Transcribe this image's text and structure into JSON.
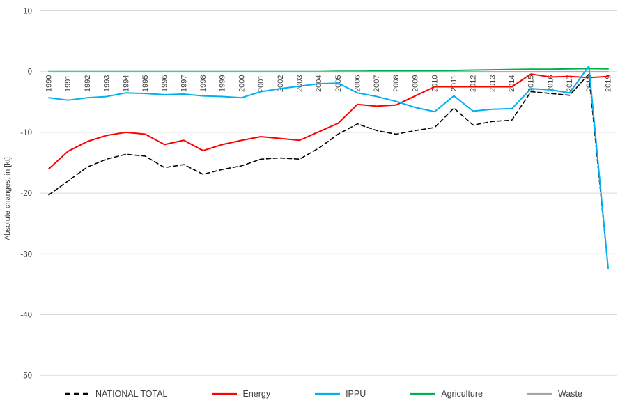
{
  "chart_data": {
    "type": "line",
    "title": "",
    "xlabel": "",
    "ylabel": "Absolute changes, in [kt]",
    "ylim": [
      -50,
      10
    ],
    "yticks": [
      10,
      0,
      -10,
      -20,
      -30,
      -40,
      -50
    ],
    "grid": true,
    "legend_position": "bottom",
    "categories": [
      "1990",
      "1991",
      "1992",
      "1993",
      "1994",
      "1995",
      "1996",
      "1997",
      "1998",
      "1999",
      "2000",
      "2001",
      "2002",
      "2003",
      "2004",
      "2005",
      "2006",
      "2007",
      "2008",
      "2009",
      "2010",
      "2011",
      "2012",
      "2013",
      "2014",
      "2015",
      "2016",
      "2017",
      "2018",
      "2019"
    ],
    "series": [
      {
        "name": "NATIONAL TOTAL",
        "color": "#000000",
        "dashed": true,
        "values": [
          -20.3,
          -18.0,
          -15.7,
          -14.4,
          -13.6,
          -13.9,
          -15.8,
          -15.3,
          -16.9,
          -16.1,
          -15.5,
          -14.4,
          -14.2,
          -14.4,
          -12.6,
          -10.3,
          -8.6,
          -9.7,
          -10.3,
          -9.7,
          -9.2,
          -6.0,
          -8.8,
          -8.2,
          -8.0,
          -3.3,
          -3.6,
          -3.9,
          -0.4,
          -32.5
        ]
      },
      {
        "name": "Energy",
        "color": "#FF0000",
        "dashed": false,
        "values": [
          -16.0,
          -13.1,
          -11.5,
          -10.5,
          -10.0,
          -10.3,
          -12.0,
          -11.3,
          -13.0,
          -12.0,
          -11.3,
          -10.7,
          -11.0,
          -11.3,
          -9.9,
          -8.5,
          -5.4,
          -5.7,
          -5.5,
          -4.0,
          -2.5,
          -2.5,
          -2.5,
          -2.5,
          -2.5,
          -0.4,
          -0.9,
          -0.8,
          -1.0,
          -0.8
        ]
      },
      {
        "name": "IPPU",
        "color": "#00B0F0",
        "dashed": false,
        "values": [
          -4.3,
          -4.7,
          -4.3,
          -4.1,
          -3.5,
          -3.6,
          -3.8,
          -3.7,
          -4.0,
          -4.1,
          -4.3,
          -3.3,
          -2.8,
          -2.4,
          -2.0,
          -1.9,
          -3.5,
          -4.1,
          -4.9,
          -5.9,
          -6.6,
          -4.0,
          -6.5,
          -6.2,
          -6.1,
          -2.8,
          -3.0,
          -3.5,
          0.9,
          -32.4
        ]
      },
      {
        "name": "Agriculture",
        "color": "#00B050",
        "dashed": false,
        "values": [
          0,
          0,
          0,
          0,
          0,
          0,
          0,
          0,
          0,
          0,
          0,
          0,
          0,
          0,
          0,
          0.05,
          0.05,
          0.1,
          0.1,
          0.1,
          0.15,
          0.2,
          0.25,
          0.3,
          0.35,
          0.4,
          0.4,
          0.45,
          0.5,
          0.45
        ]
      },
      {
        "name": "Waste",
        "color": "#A6A6A6",
        "dashed": false,
        "values": [
          -0.05,
          -0.05,
          -0.05,
          -0.05,
          -0.05,
          -0.05,
          -0.05,
          -0.05,
          -0.05,
          -0.05,
          -0.05,
          -0.05,
          -0.05,
          -0.05,
          -0.05,
          -0.05,
          -0.05,
          -0.05,
          -0.05,
          -0.05,
          -0.05,
          -0.05,
          -0.05,
          -0.05,
          -0.05,
          -0.05,
          -0.05,
          -0.05,
          -0.05,
          -0.05
        ]
      }
    ],
    "colors": {
      "gridline": "#D9D9D9",
      "axis_text": "#404040"
    }
  }
}
